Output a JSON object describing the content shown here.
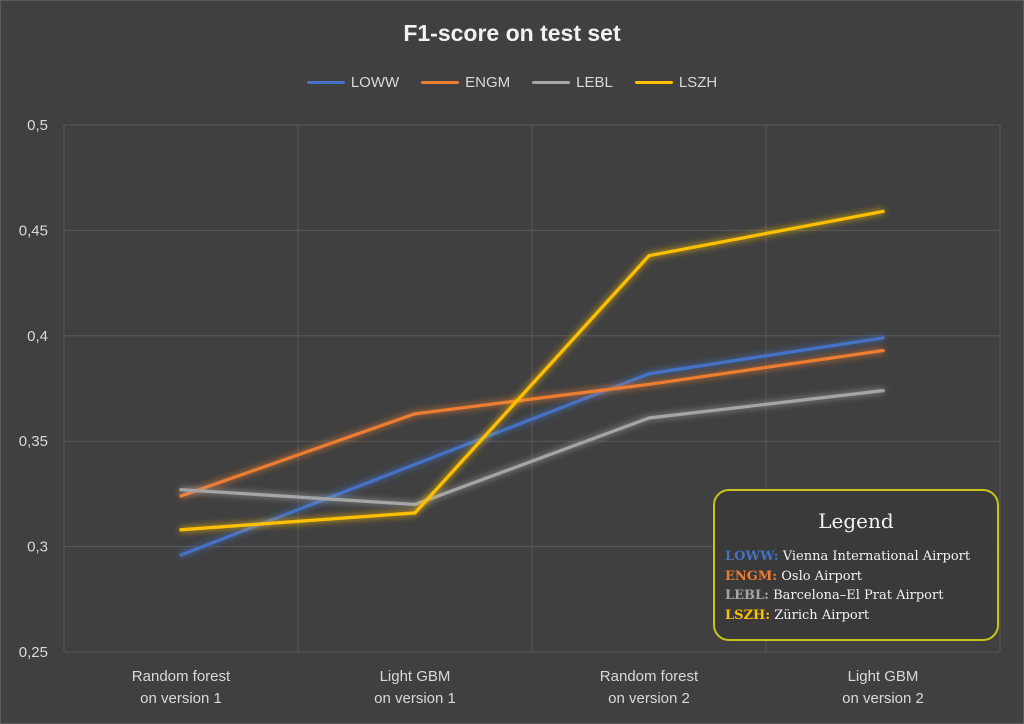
{
  "chart_data": {
    "type": "line",
    "title": "F1-score on test set",
    "xlabel": "",
    "ylabel": "",
    "ylim": [
      0.25,
      0.5
    ],
    "yticks": [
      "0,25",
      "0,3",
      "0,35",
      "0,4",
      "0,45",
      "0,5"
    ],
    "ytick_values": [
      0.25,
      0.3,
      0.35,
      0.4,
      0.45,
      0.5
    ],
    "categories": [
      [
        "Random forest",
        "on version 1"
      ],
      [
        "Light GBM",
        "on version 1"
      ],
      [
        "Random forest",
        "on version 2"
      ],
      [
        "Light GBM",
        "on version 2"
      ]
    ],
    "grid": true,
    "legend_position": "top",
    "series": [
      {
        "name": "LOWW",
        "color": "#4472c4",
        "values": [
          0.296,
          0.339,
          0.382,
          0.399
        ]
      },
      {
        "name": "ENGM",
        "color": "#ed7d31",
        "values": [
          0.324,
          0.363,
          0.377,
          0.393
        ]
      },
      {
        "name": "LEBL",
        "color": "#a5a5a5",
        "values": [
          0.327,
          0.32,
          0.361,
          0.374
        ]
      },
      {
        "name": "LSZH",
        "color": "#ffc000",
        "values": [
          0.308,
          0.316,
          0.438,
          0.459
        ]
      }
    ],
    "annotation_legend": {
      "title": "Legend",
      "border_color": "#c8c51a",
      "entries": [
        {
          "code": "LOWW:",
          "desc": "Vienna International Airport",
          "color": "#4472c4"
        },
        {
          "code": "ENGM:",
          "desc": "Oslo Airport",
          "color": "#ed7d31"
        },
        {
          "code": "LEBL:",
          "desc": "Barcelona–El Prat Airport",
          "color": "#a5a5a5"
        },
        {
          "code": "LSZH:",
          "desc": "Zürich Airport",
          "color": "#ffc000"
        }
      ]
    }
  }
}
